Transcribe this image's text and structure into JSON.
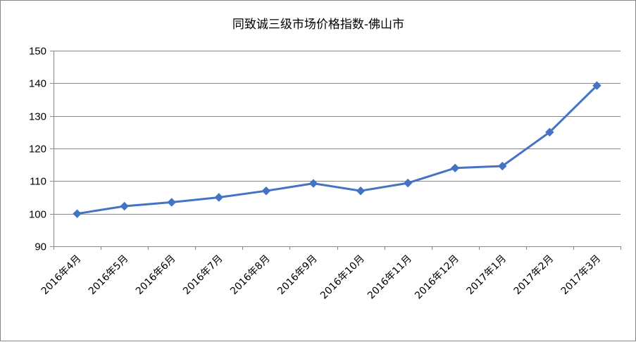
{
  "chart_data": {
    "type": "line",
    "title": "同致诚三级市场价格指数-佛山市",
    "xlabel": "",
    "ylabel": "",
    "categories": [
      "2016年4月",
      "2016年5月",
      "2016年6月",
      "2016年7月",
      "2016年8月",
      "2016年9月",
      "2016年10月",
      "2016年11月",
      "2016年12月",
      "2017年1月",
      "2017年2月",
      "2017年3月"
    ],
    "series": [
      {
        "values": [
          100.0,
          102.3,
          103.5,
          105.0,
          107.0,
          109.3,
          107.0,
          109.4,
          114.0,
          114.6,
          125.0,
          139.3
        ]
      }
    ],
    "y_ticks": [
      "90",
      "100",
      "110",
      "120",
      "130",
      "140",
      "150"
    ],
    "ylim": [
      90,
      150
    ],
    "grid": "horizontal",
    "legend": "none",
    "line_color": "#4472C4",
    "gridline_color": "#868686"
  }
}
